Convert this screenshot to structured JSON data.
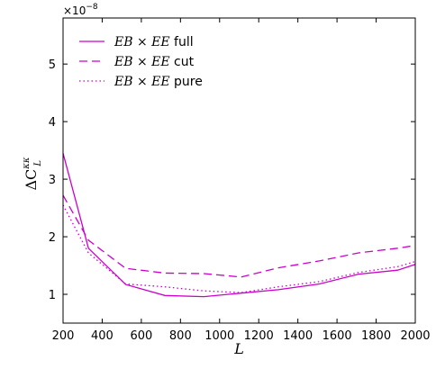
{
  "chart_data": {
    "type": "line",
    "xlabel": "L",
    "ylabel": "ΔC",
    "ylabel_sup": "κκ",
    "ylabel_sub": "L",
    "y_multiplier_base": "×10",
    "y_multiplier_exp": "−8",
    "xlim": [
      200,
      2000
    ],
    "ylim": [
      0.5,
      5.8
    ],
    "xticks": [
      200,
      400,
      600,
      800,
      1000,
      1200,
      1400,
      1600,
      1800,
      2000
    ],
    "yticks": [
      1,
      2,
      3,
      4,
      5
    ],
    "grid": false,
    "legend_position": "top-left",
    "color": "#cc00cc",
    "series": [
      {
        "name": "EB × EE",
        "suffix": "full",
        "dash": "solid",
        "x": [
          200,
          330,
          520,
          720,
          920,
          1110,
          1300,
          1510,
          1710,
          1910,
          2000
        ],
        "y": [
          3.45,
          1.8,
          1.17,
          0.98,
          0.96,
          1.02,
          1.08,
          1.18,
          1.35,
          1.42,
          1.52
        ]
      },
      {
        "name": "EB × EE",
        "suffix": "cut",
        "dash": "dashed",
        "x": [
          200,
          330,
          520,
          720,
          920,
          1110,
          1300,
          1510,
          1710,
          1910,
          2000
        ],
        "y": [
          2.72,
          1.94,
          1.45,
          1.37,
          1.36,
          1.3,
          1.46,
          1.58,
          1.72,
          1.8,
          1.85
        ]
      },
      {
        "name": "EB × EE",
        "suffix": "pure",
        "dash": "dotted",
        "x": [
          200,
          330,
          520,
          720,
          920,
          1110,
          1300,
          1510,
          1710,
          1910,
          2000
        ],
        "y": [
          2.55,
          1.72,
          1.18,
          1.13,
          1.06,
          1.03,
          1.13,
          1.22,
          1.38,
          1.48,
          1.57
        ]
      }
    ]
  }
}
